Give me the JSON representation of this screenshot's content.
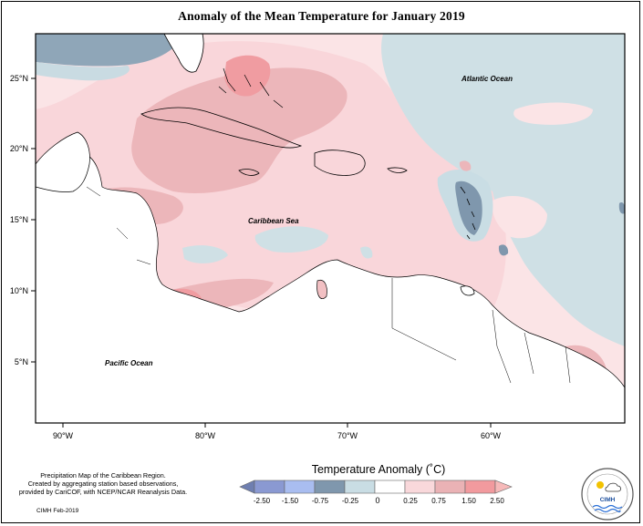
{
  "title": "Anomaly of the Mean Temperature for January 2019",
  "map": {
    "lat_ticks": [
      "25°N",
      "20°N",
      "15°N",
      "10°N",
      "5°N"
    ],
    "lon_ticks": [
      "90°W",
      "80°W",
      "70°W",
      "60°W"
    ],
    "labels": {
      "atlantic": "Atlantic Ocean",
      "caribbean": "Caribbean Sea",
      "pacific": "Pacific Ocean"
    }
  },
  "legend": {
    "title": "Temperature Anomaly (˚C)",
    "tick_labels": [
      "-2.50",
      "-1.50",
      "-0.75",
      "-0.25",
      "0",
      "0.25",
      "0.75",
      "1.50",
      "2.50"
    ],
    "colors": [
      "#6f7fb0",
      "#8a99d2",
      "#a9bdf0",
      "#7f97ad",
      "#c9dde4",
      "#ffffff",
      "#f9d8db",
      "#eab2b5",
      "#f29a9e",
      "#f6b9b9"
    ]
  },
  "credits": {
    "line1": "Precipitation Map of the Caribbean Region.",
    "line2": "Created by aggregating station based observations,",
    "line3": "provided by CariCOF, with NCEP/NCAR Reanalysis Data.",
    "date": "CIMH Feb-2019"
  },
  "logo_text": "CIMH"
}
